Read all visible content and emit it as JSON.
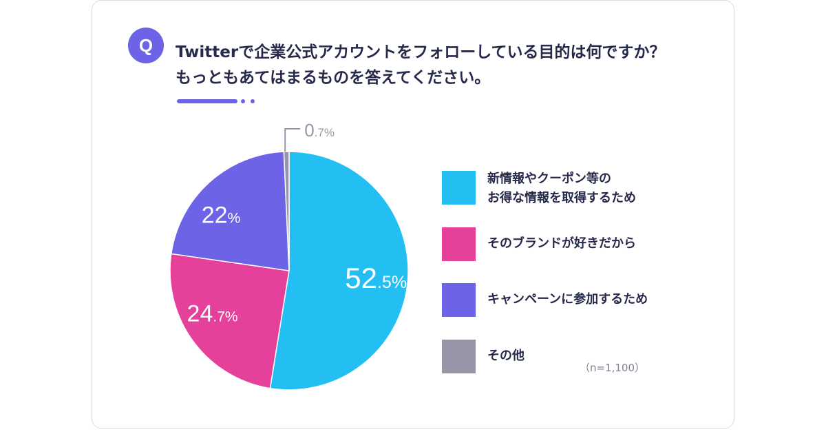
{
  "question": {
    "badge": "Q",
    "line1": "Twitterで企業公式アカウントをフォローしている目的は何ですか？",
    "line2": "もっともあてはまるものを答えてください。"
  },
  "note": "（n=1,100）",
  "colors": {
    "accent": "#6c63e6",
    "text": "#262a4a",
    "cyan": "#23bef2",
    "magenta": "#e5419b",
    "indigo": "#6c63e6",
    "gray": "#9696a8"
  },
  "chart_data": {
    "type": "pie",
    "title": "",
    "unit": "%",
    "slices": [
      {
        "label": "新情報やクーポン等の\nお得な情報を取得するため",
        "label_lines": [
          "新情報やクーポン等の",
          "お得な情報を取得するため"
        ],
        "value": 52.5,
        "value_int": "52",
        "value_dec": ".5",
        "color": "#23bef2"
      },
      {
        "label": "そのブランドが好きだから",
        "label_lines": [
          "そのブランドが好きだから"
        ],
        "value": 24.7,
        "value_int": "24",
        "value_dec": ".7",
        "color": "#e5419b"
      },
      {
        "label": "キャンペーンに参加するため",
        "label_lines": [
          "キャンペーンに参加するため"
        ],
        "value": 22,
        "value_int": "22",
        "value_dec": "",
        "color": "#6c63e6"
      },
      {
        "label": "その他",
        "label_lines": [
          "その他"
        ],
        "value": 0.7,
        "value_int": "0",
        "value_dec": ".7",
        "color": "#9696a8"
      }
    ]
  }
}
